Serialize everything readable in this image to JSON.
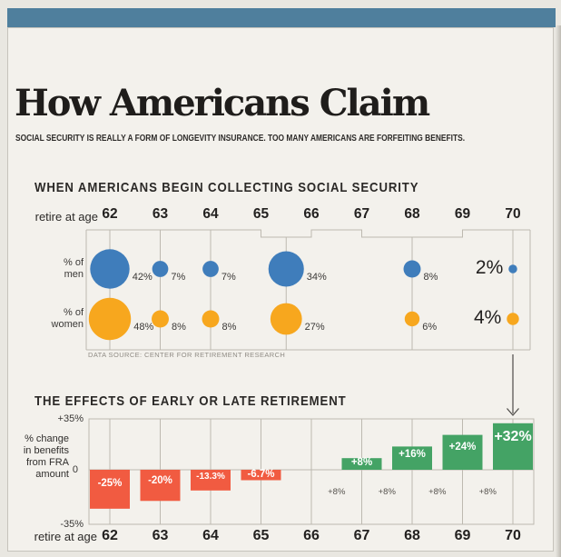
{
  "masthead_color": "#4f7f9d",
  "title": "How Americans Claim",
  "subtitle": "SOCIAL SECURITY IS REALLY A FORM OF LONGEVITY INSURANCE. TOO MANY AMERICANS ARE FORFEITING BENEFITS.",
  "chart_data": [
    {
      "type": "bubble",
      "title": "WHEN AMERICANS BEGIN COLLECTING SOCIAL SECURITY",
      "x_axis_label": "retire at age",
      "ages": [
        "62",
        "63",
        "64",
        "65",
        "66",
        "67",
        "68",
        "69",
        "70"
      ],
      "source": "DATA SOURCE: CENTER FOR RETIREMENT RESEARCH",
      "series": [
        {
          "name": "men",
          "label": "% of\nmen",
          "color": "#3f7dbb",
          "points": [
            {
              "ages": [
                "62"
              ],
              "value": 42,
              "label": "42%"
            },
            {
              "ages": [
                "63"
              ],
              "value": 7,
              "label": "7%"
            },
            {
              "ages": [
                "64"
              ],
              "value": 7,
              "label": "7%"
            },
            {
              "ages": [
                "65",
                "66"
              ],
              "value": 34,
              "label": "34%"
            },
            {
              "ages": [
                "67",
                "68",
                "69"
              ],
              "value": 8,
              "label": "8%"
            },
            {
              "ages": [
                "70"
              ],
              "value": 2,
              "label": "2%",
              "emphasis": true
            }
          ]
        },
        {
          "name": "women",
          "label": "% of\nwomen",
          "color": "#f7a71e",
          "points": [
            {
              "ages": [
                "62"
              ],
              "value": 48,
              "label": "48%"
            },
            {
              "ages": [
                "63"
              ],
              "value": 8,
              "label": "8%"
            },
            {
              "ages": [
                "64"
              ],
              "value": 8,
              "label": "8%"
            },
            {
              "ages": [
                "65",
                "66"
              ],
              "value": 27,
              "label": "27%"
            },
            {
              "ages": [
                "67",
                "68",
                "69"
              ],
              "value": 6,
              "label": "6%"
            },
            {
              "ages": [
                "70"
              ],
              "value": 4,
              "label": "4%",
              "emphasis": true
            }
          ]
        }
      ]
    },
    {
      "type": "bar",
      "title": "THE EFFECTS OF EARLY OR LATE RETIREMENT",
      "x_axis_label": "retire at age",
      "ylabel_lines": [
        "% change",
        "in benefits",
        "from FRA",
        "amount"
      ],
      "yticks": [
        {
          "value": 35,
          "label": "+35%"
        },
        {
          "value": 0,
          "label": "0"
        },
        {
          "value": -35,
          "label": "-35%"
        }
      ],
      "ylim": [
        -35,
        35
      ],
      "categories": [
        "62",
        "63",
        "64",
        "65",
        "66",
        "67",
        "68",
        "69",
        "70"
      ],
      "values": [
        -25,
        -20,
        -13.3,
        -6.7,
        0,
        8,
        16,
        24,
        32
      ],
      "bar_labels": [
        "-25%",
        "-20%",
        "-13.3%",
        "-6.7%",
        "",
        "+8%",
        "+16%",
        "+24%",
        "+32%"
      ],
      "increment_labels": [
        {
          "between": [
            "66",
            "67"
          ],
          "label": "+8%"
        },
        {
          "between": [
            "67",
            "68"
          ],
          "label": "+8%"
        },
        {
          "between": [
            "68",
            "69"
          ],
          "label": "+8%"
        },
        {
          "between": [
            "69",
            "70"
          ],
          "label": "+8%"
        }
      ],
      "negative_color": "#f15b41",
      "positive_color": "#44a365"
    }
  ]
}
